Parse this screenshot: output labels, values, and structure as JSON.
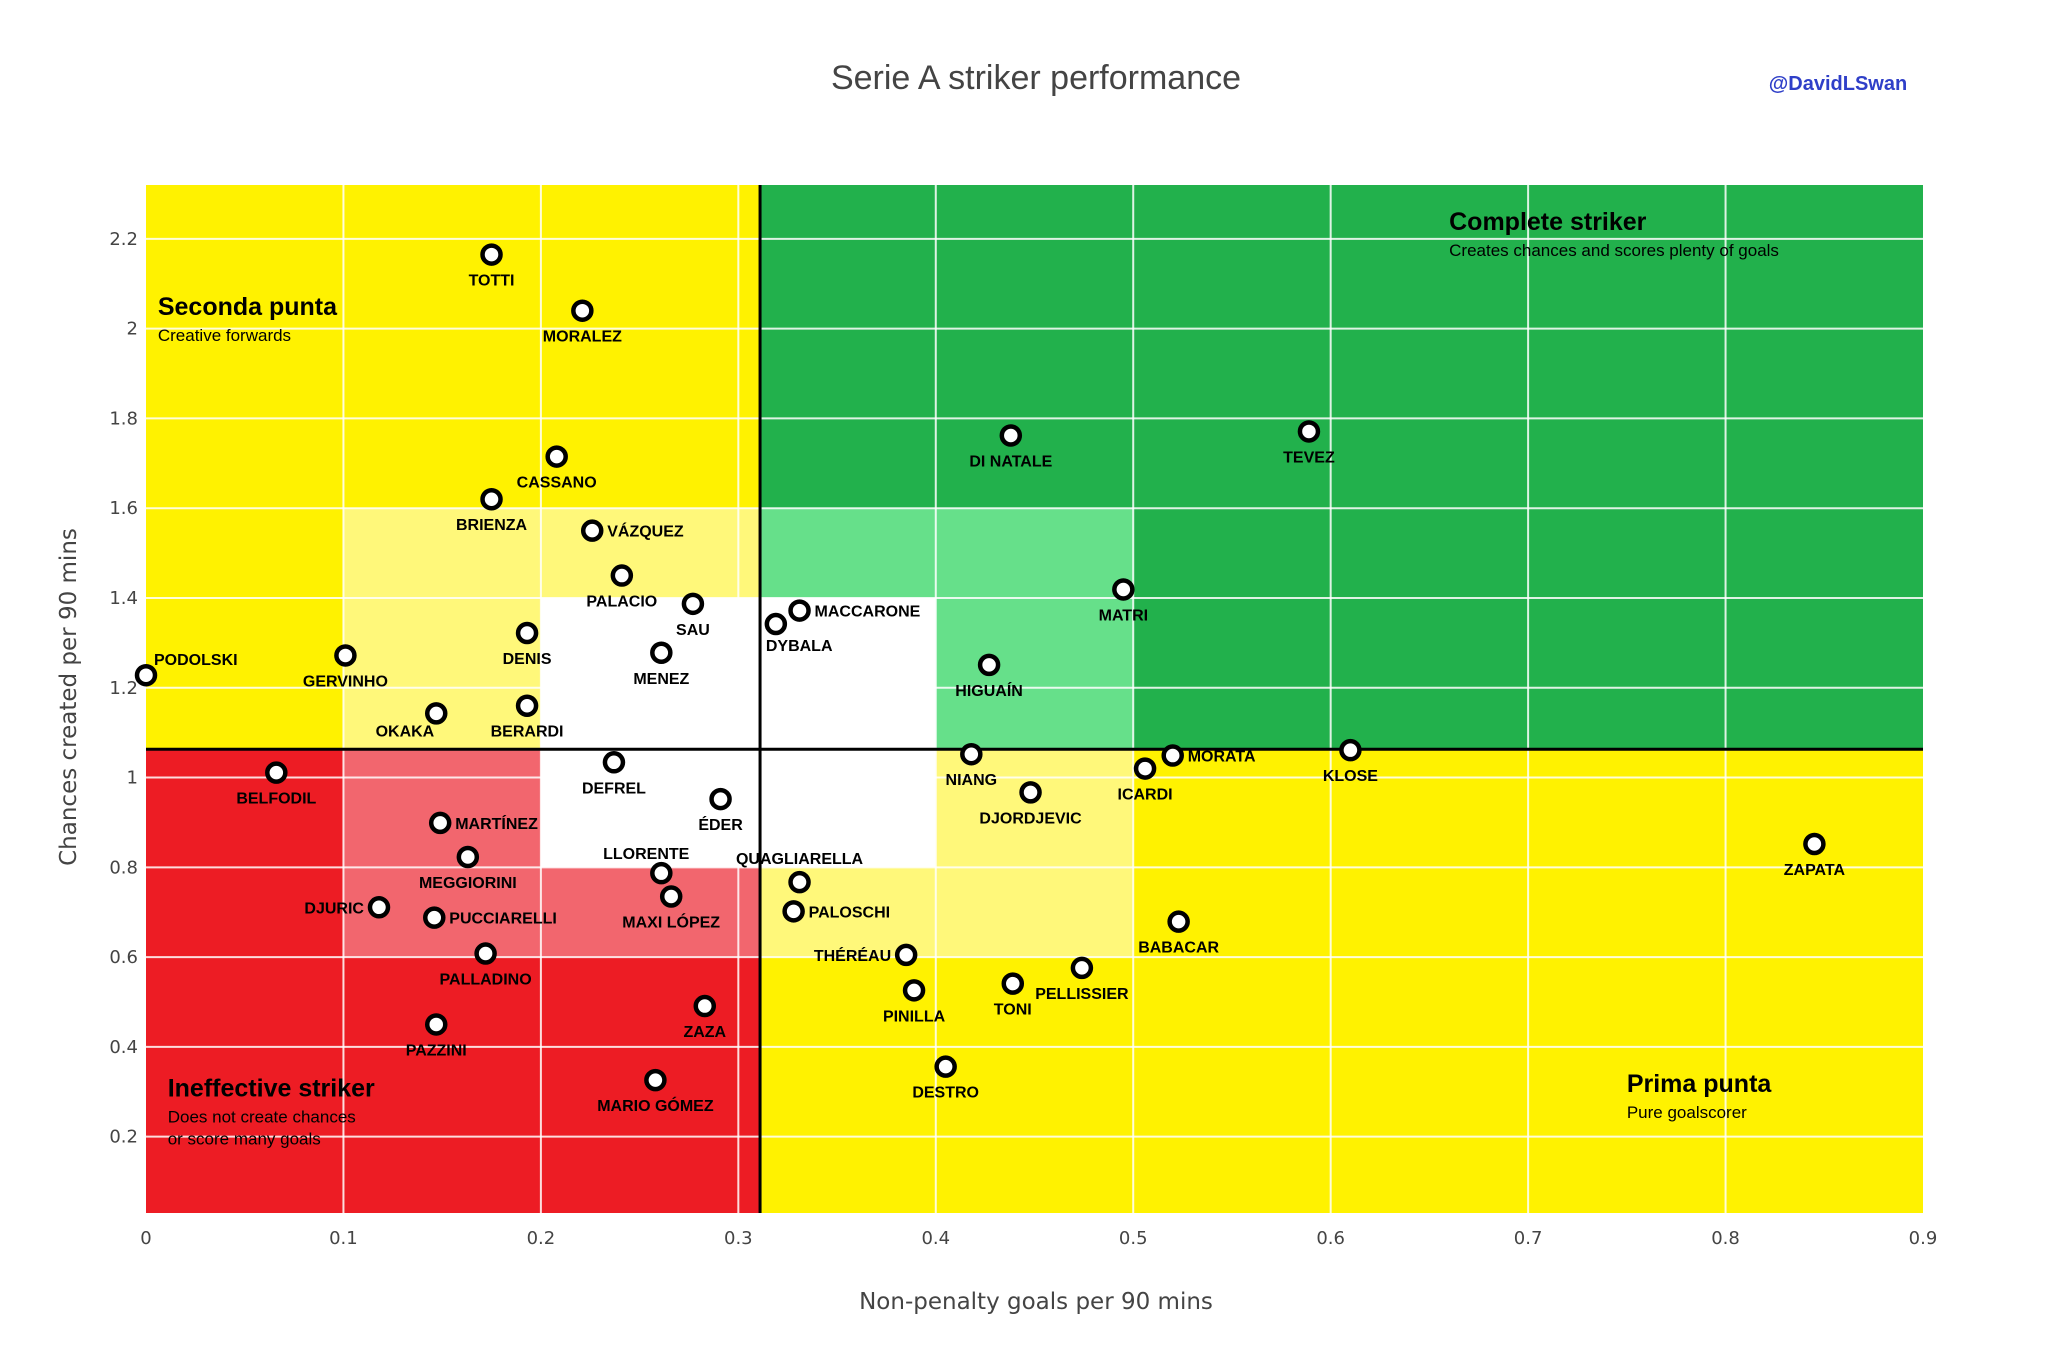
{
  "chart_data": {
    "type": "scatter",
    "title": "Serie A striker performance",
    "credit": "@DavidLSwan",
    "xlabel": "Non-penalty goals per 90 mins",
    "ylabel": "Chances created per 90 mins",
    "xlim": [
      0,
      0.9
    ],
    "ylim": [
      0.03,
      2.32
    ],
    "xticks": [
      "0",
      "0.1",
      "0.2",
      "0.3",
      "0.4",
      "0.5",
      "0.6",
      "0.7",
      "0.8",
      "0.9"
    ],
    "xtick_values": [
      0,
      0.1,
      0.2,
      0.3,
      0.4,
      0.5,
      0.6,
      0.7,
      0.8,
      0.9
    ],
    "yticks": [
      "0.2",
      "0.4",
      "0.6",
      "0.8",
      "1",
      "1.2",
      "1.4",
      "1.6",
      "1.8",
      "2",
      "2.2"
    ],
    "ytick_values": [
      0.2,
      0.4,
      0.6,
      0.8,
      1,
      1.2,
      1.4,
      1.6,
      1.8,
      2,
      2.2
    ],
    "grid": true,
    "reference_lines": {
      "x": 0.311,
      "y": 1.063
    },
    "colors": {
      "yellow": "#fff200",
      "light_yellow": "#fff87a",
      "green": "#22b14c",
      "light_green": "#66e08a",
      "red": "#ed1c24",
      "light_red": "#f2666e",
      "white": "#ffffff"
    },
    "annotations": [
      {
        "title": "Seconda punta",
        "subtitle": [
          "Creative forwards"
        ]
      },
      {
        "title": "Complete striker",
        "subtitle": [
          "Creates chances and scores plenty of goals"
        ]
      },
      {
        "title": "Ineffective striker",
        "subtitle": [
          "Does not create chances",
          "or score many goals"
        ]
      },
      {
        "title": "Prima punta",
        "subtitle": [
          "Pure goalscorer"
        ]
      }
    ],
    "points": [
      {
        "name": "TOTTI",
        "x": 0.175,
        "y": 2.165,
        "label_pos": "bottom"
      },
      {
        "name": "MORALEZ",
        "x": 0.221,
        "y": 2.04,
        "label_pos": "bottom"
      },
      {
        "name": "CASSANO",
        "x": 0.208,
        "y": 1.715,
        "label_pos": "bottom"
      },
      {
        "name": "BRIENZA",
        "x": 0.175,
        "y": 1.62,
        "label_pos": "bottom"
      },
      {
        "name": "VÁZQUEZ",
        "x": 0.226,
        "y": 1.55,
        "label_pos": "right"
      },
      {
        "name": "PALACIO",
        "x": 0.241,
        "y": 1.45,
        "label_pos": "bottom"
      },
      {
        "name": "SAU",
        "x": 0.277,
        "y": 1.387,
        "label_pos": "bottom"
      },
      {
        "name": "DENIS",
        "x": 0.193,
        "y": 1.322,
        "label_pos": "bottom"
      },
      {
        "name": "MENEZ",
        "x": 0.261,
        "y": 1.278,
        "label_pos": "bottom"
      },
      {
        "name": "PODOLSKI",
        "x": 0.0,
        "y": 1.228,
        "label_pos": "top-right"
      },
      {
        "name": "GERVINHO",
        "x": 0.101,
        "y": 1.272,
        "label_pos": "bottom"
      },
      {
        "name": "OKAKA",
        "x": 0.147,
        "y": 1.143,
        "label_pos": "bottom-left"
      },
      {
        "name": "BERARDI",
        "x": 0.193,
        "y": 1.16,
        "label_pos": "bottom"
      },
      {
        "name": "DYBALA",
        "x": 0.319,
        "y": 1.342,
        "label_pos": "bottom-right"
      },
      {
        "name": "MACCARONE",
        "x": 0.331,
        "y": 1.372,
        "label_pos": "right"
      },
      {
        "name": "DI NATALE",
        "x": 0.438,
        "y": 1.762,
        "label_pos": "bottom"
      },
      {
        "name": "TEVEZ",
        "x": 0.589,
        "y": 1.771,
        "label_pos": "bottom"
      },
      {
        "name": "MATRI",
        "x": 0.495,
        "y": 1.419,
        "label_pos": "bottom"
      },
      {
        "name": "HIGUAÍN",
        "x": 0.427,
        "y": 1.251,
        "label_pos": "bottom"
      },
      {
        "name": "NIANG",
        "x": 0.418,
        "y": 1.052,
        "label_pos": "bottom"
      },
      {
        "name": "MORATA",
        "x": 0.52,
        "y": 1.049,
        "label_pos": "right"
      },
      {
        "name": "ICARDI",
        "x": 0.506,
        "y": 1.02,
        "label_pos": "bottom"
      },
      {
        "name": "KLOSE",
        "x": 0.61,
        "y": 1.061,
        "label_pos": "bottom"
      },
      {
        "name": "DJORDJEVIC",
        "x": 0.448,
        "y": 0.967,
        "label_pos": "bottom"
      },
      {
        "name": "ZAPATA",
        "x": 0.845,
        "y": 0.852,
        "label_pos": "bottom"
      },
      {
        "name": "BELFODIL",
        "x": 0.066,
        "y": 1.011,
        "label_pos": "bottom"
      },
      {
        "name": "DEFREL",
        "x": 0.237,
        "y": 1.034,
        "label_pos": "bottom"
      },
      {
        "name": "ÉDER",
        "x": 0.291,
        "y": 0.952,
        "label_pos": "bottom"
      },
      {
        "name": "MARTÍNEZ",
        "x": 0.149,
        "y": 0.899,
        "label_pos": "right"
      },
      {
        "name": "MEGGIORINI",
        "x": 0.163,
        "y": 0.823,
        "label_pos": "bottom"
      },
      {
        "name": "LLORENTE",
        "x": 0.261,
        "y": 0.787,
        "label_pos": "top-left"
      },
      {
        "name": "MAXI LÓPEZ",
        "x": 0.266,
        "y": 0.735,
        "label_pos": "bottom"
      },
      {
        "name": "DJURIC",
        "x": 0.118,
        "y": 0.711,
        "label_pos": "left"
      },
      {
        "name": "PUCCIARELLI",
        "x": 0.146,
        "y": 0.688,
        "label_pos": "right"
      },
      {
        "name": "PALLADINO",
        "x": 0.172,
        "y": 0.608,
        "label_pos": "bottom"
      },
      {
        "name": "PAZZINI",
        "x": 0.147,
        "y": 0.45,
        "label_pos": "bottom"
      },
      {
        "name": "ZAZA",
        "x": 0.283,
        "y": 0.491,
        "label_pos": "bottom"
      },
      {
        "name": "MARIO GÓMEZ",
        "x": 0.258,
        "y": 0.326,
        "label_pos": "bottom"
      },
      {
        "name": "QUAGLIARELLA",
        "x": 0.331,
        "y": 0.767,
        "label_pos": "top"
      },
      {
        "name": "PALOSCHI",
        "x": 0.328,
        "y": 0.702,
        "label_pos": "right"
      },
      {
        "name": "THÉRÉAU",
        "x": 0.385,
        "y": 0.605,
        "label_pos": "left"
      },
      {
        "name": "PINILLA",
        "x": 0.389,
        "y": 0.526,
        "label_pos": "bottom"
      },
      {
        "name": "TONI",
        "x": 0.439,
        "y": 0.541,
        "label_pos": "bottom"
      },
      {
        "name": "PELLISSIER",
        "x": 0.474,
        "y": 0.576,
        "label_pos": "bottom"
      },
      {
        "name": "BABACAR",
        "x": 0.523,
        "y": 0.679,
        "label_pos": "bottom"
      },
      {
        "name": "DESTRO",
        "x": 0.405,
        "y": 0.356,
        "label_pos": "bottom"
      }
    ]
  }
}
